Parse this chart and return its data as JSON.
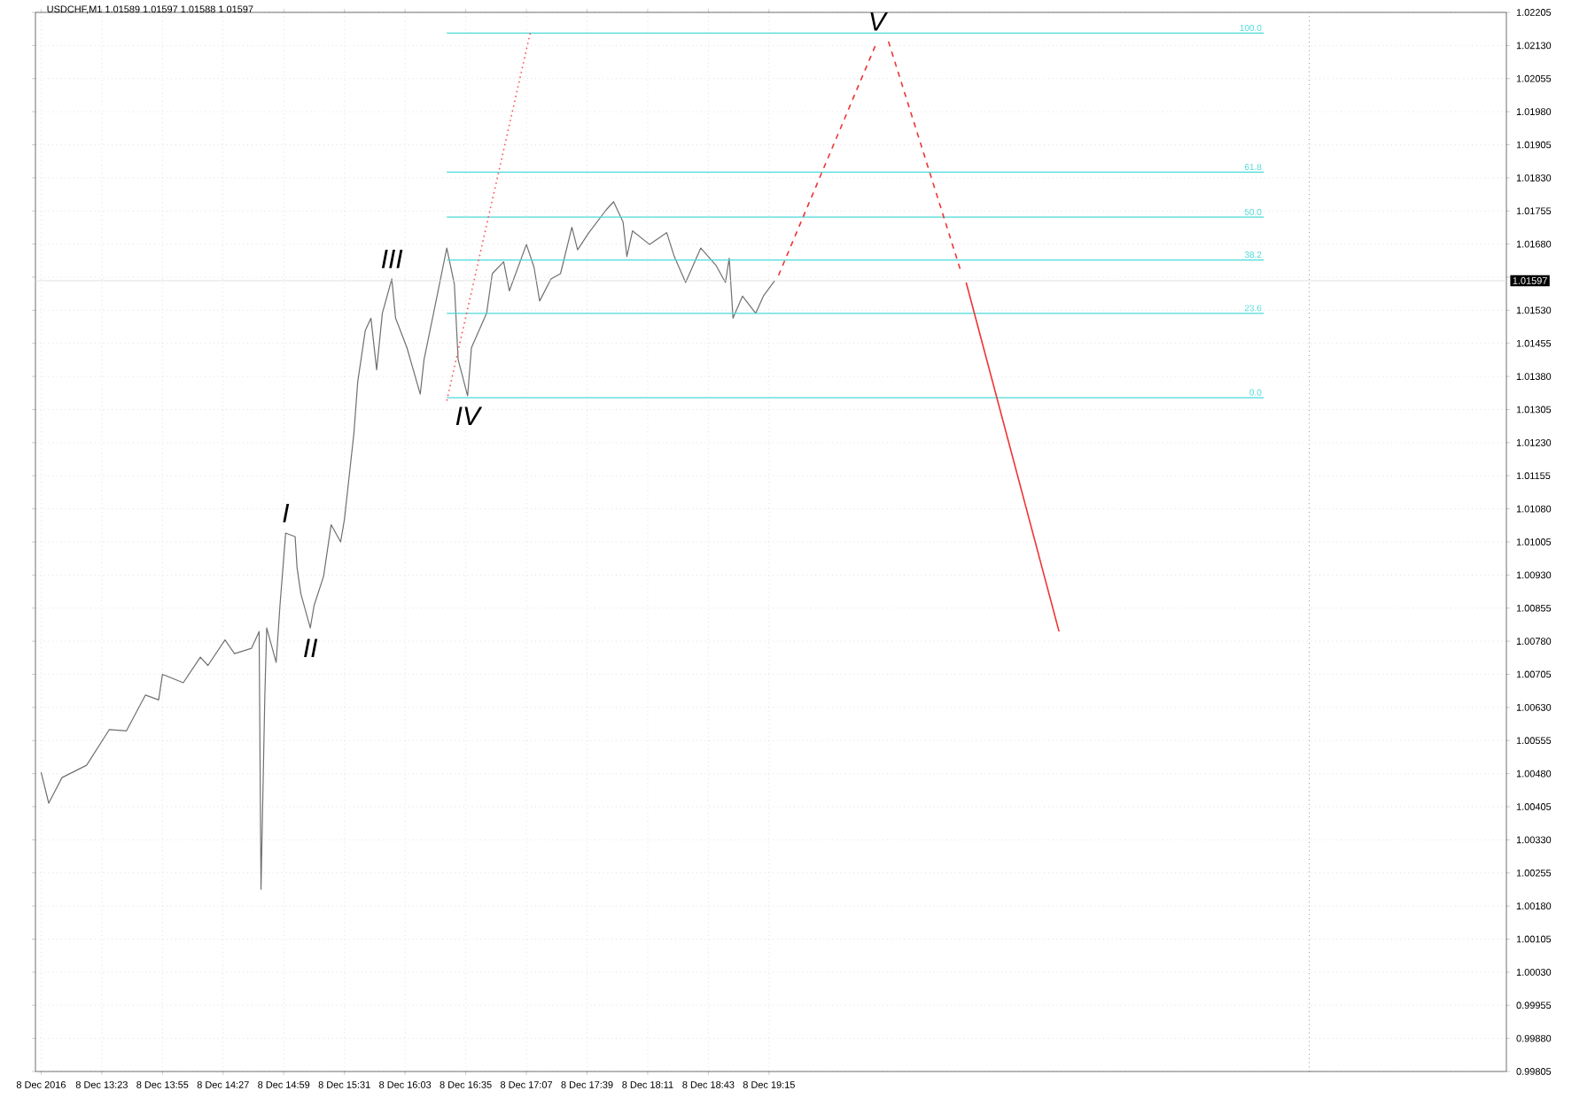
{
  "chart_data": {
    "type": "line",
    "title": "USDCHF,M1  1.01589 1.01597 1.01588 1.01597",
    "xlim": [
      "2016-12-08T12:48",
      "2016-12-09T01:44"
    ],
    "ylim": [
      0.99805,
      1.02205
    ],
    "xticks": [
      {
        "value": "2016-12-08T12:51",
        "label": "8 Dec 2016"
      },
      {
        "value": "2016-12-08T13:23",
        "label": "8 Dec 13:23"
      },
      {
        "value": "2016-12-08T13:55",
        "label": "8 Dec 13:55"
      },
      {
        "value": "2016-12-08T14:27",
        "label": "8 Dec 14:27"
      },
      {
        "value": "2016-12-08T14:59",
        "label": "8 Dec 14:59"
      },
      {
        "value": "2016-12-08T15:31",
        "label": "8 Dec 15:31"
      },
      {
        "value": "2016-12-08T16:03",
        "label": "8 Dec 16:03"
      },
      {
        "value": "2016-12-08T16:35",
        "label": "8 Dec 16:35"
      },
      {
        "value": "2016-12-08T17:07",
        "label": "8 Dec 17:07"
      },
      {
        "value": "2016-12-08T17:39",
        "label": "8 Dec 17:39"
      },
      {
        "value": "2016-12-08T18:11",
        "label": "8 Dec 18:11"
      },
      {
        "value": "2016-12-08T18:43",
        "label": "8 Dec 18:43"
      },
      {
        "value": "2016-12-08T19:15",
        "label": "8 Dec 19:15"
      }
    ],
    "yticks": [
      {
        "value": 0.99805,
        "label": "0.99805"
      },
      {
        "value": 0.9988,
        "label": "0.99880"
      },
      {
        "value": 0.99955,
        "label": "0.99955"
      },
      {
        "value": 1.0003,
        "label": "1.00030"
      },
      {
        "value": 1.00105,
        "label": "1.00105"
      },
      {
        "value": 1.0018,
        "label": "1.00180"
      },
      {
        "value": 1.00255,
        "label": "1.00255"
      },
      {
        "value": 1.0033,
        "label": "1.00330"
      },
      {
        "value": 1.00405,
        "label": "1.00405"
      },
      {
        "value": 1.0048,
        "label": "1.00480"
      },
      {
        "value": 1.00555,
        "label": "1.00555"
      },
      {
        "value": 1.0063,
        "label": "1.00630"
      },
      {
        "value": 1.00705,
        "label": "1.00705"
      },
      {
        "value": 1.0078,
        "label": "1.00780"
      },
      {
        "value": 1.00855,
        "label": "1.00855"
      },
      {
        "value": 1.0093,
        "label": "1.00930"
      },
      {
        "value": 1.01005,
        "label": "1.01005"
      },
      {
        "value": 1.0108,
        "label": "1.01080"
      },
      {
        "value": 1.01155,
        "label": "1.01155"
      },
      {
        "value": 1.0123,
        "label": "1.01230"
      },
      {
        "value": 1.01305,
        "label": "1.01305"
      },
      {
        "value": 1.0138,
        "label": "1.01380"
      },
      {
        "value": 1.01455,
        "label": "1.01455"
      },
      {
        "value": 1.0153,
        "label": "1.01530"
      },
      {
        "value": 1.01605,
        "label": null
      },
      {
        "value": 1.0168,
        "label": "1.01680"
      },
      {
        "value": 1.01755,
        "label": "1.01755"
      },
      {
        "value": 1.0183,
        "label": "1.01830"
      },
      {
        "value": 1.01905,
        "label": "1.01905"
      },
      {
        "value": 1.0198,
        "label": "1.01980"
      },
      {
        "value": 1.02055,
        "label": "1.02055"
      },
      {
        "value": 1.0213,
        "label": "1.02130"
      },
      {
        "value": 1.02205,
        "label": "1.02205"
      }
    ],
    "grid": true,
    "marker": "none",
    "series": [
      {
        "color": "#707070",
        "x": [
          "2016-12-08T12:51",
          "2016-12-08T12:55",
          "2016-12-08T13:02",
          "2016-12-08T13:15",
          "2016-12-08T13:27",
          "2016-12-08T13:36",
          "2016-12-08T13:46",
          "2016-12-08T13:53",
          "2016-12-08T13:55",
          "2016-12-08T14:06",
          "2016-12-08T14:15",
          "2016-12-08T14:19",
          "2016-12-08T14:28",
          "2016-12-08T14:33",
          "2016-12-08T14:42",
          "2016-12-08T14:46",
          "2016-12-08T14:47",
          "2016-12-08T14:49",
          "2016-12-08T14:50",
          "2016-12-08T14:55",
          "2016-12-08T14:57",
          "2016-12-08T15:00",
          "2016-12-08T15:05",
          "2016-12-08T15:06",
          "2016-12-08T15:08",
          "2016-12-08T15:13",
          "2016-12-08T15:15",
          "2016-12-08T15:20",
          "2016-12-08T15:24",
          "2016-12-08T15:29",
          "2016-12-08T15:31",
          "2016-12-08T15:34",
          "2016-12-08T15:36",
          "2016-12-08T15:38",
          "2016-12-08T15:42",
          "2016-12-08T15:45",
          "2016-12-08T15:48",
          "2016-12-08T15:51",
          "2016-12-08T15:56",
          "2016-12-08T15:58",
          "2016-12-08T16:04",
          "2016-12-08T16:11",
          "2016-12-08T16:13",
          "2016-12-08T16:18",
          "2016-12-08T16:25",
          "2016-12-08T16:29",
          "2016-12-08T16:31",
          "2016-12-08T16:36",
          "2016-12-08T16:38",
          "2016-12-08T16:46",
          "2016-12-08T16:49",
          "2016-12-08T16:55",
          "2016-12-08T16:58",
          "2016-12-08T17:07",
          "2016-12-08T17:11",
          "2016-12-08T17:14",
          "2016-12-08T17:20",
          "2016-12-08T17:25",
          "2016-12-08T17:31",
          "2016-12-08T17:34",
          "2016-12-08T17:40",
          "2016-12-08T17:49",
          "2016-12-08T17:53",
          "2016-12-08T17:58",
          "2016-12-08T18:00",
          "2016-12-08T18:03",
          "2016-12-08T18:12",
          "2016-12-08T18:21",
          "2016-12-08T18:25",
          "2016-12-08T18:31",
          "2016-12-08T18:39",
          "2016-12-08T18:47",
          "2016-12-08T18:52",
          "2016-12-08T18:54",
          "2016-12-08T18:56",
          "2016-12-08T19:01",
          "2016-12-08T19:08",
          "2016-12-08T19:12",
          "2016-12-08T19:18"
        ],
        "values": [
          1.00483,
          1.00413,
          1.00471,
          1.00499,
          1.0058,
          1.00577,
          1.00658,
          1.00647,
          1.00705,
          1.00686,
          1.00744,
          1.00725,
          1.00783,
          1.00752,
          1.00764,
          1.00802,
          1.00218,
          1.00654,
          1.0081,
          1.00732,
          1.00861,
          1.01025,
          1.01017,
          1.00947,
          1.00888,
          1.0081,
          1.00861,
          1.00927,
          1.01044,
          1.01005,
          1.01056,
          1.01173,
          1.01251,
          1.01367,
          1.01484,
          1.01512,
          1.01395,
          1.01523,
          1.01601,
          1.01512,
          1.01445,
          1.0134,
          1.01418,
          1.01523,
          1.01671,
          1.01589,
          1.01418,
          1.01336,
          1.01445,
          1.01523,
          1.01613,
          1.0164,
          1.01574,
          1.01679,
          1.01628,
          1.01551,
          1.01601,
          1.01613,
          1.01718,
          1.01667,
          1.01706,
          1.01757,
          1.01776,
          1.0173,
          1.01652,
          1.0171,
          1.01679,
          1.01706,
          1.01652,
          1.01593,
          1.01671,
          1.01632,
          1.01593,
          1.01648,
          1.01512,
          1.01562,
          1.01523,
          1.01562,
          1.01597
        ]
      },
      {
        "name": "100.0",
        "color": "#4dd9d9",
        "x": [
          "2016-12-08T16:25",
          "2016-12-08T23:36"
        ],
        "values": [
          1.02158,
          1.02158
        ]
      },
      {
        "name": "61.8",
        "color": "#4dd9d9",
        "x": [
          "2016-12-08T16:25",
          "2016-12-08T23:36"
        ],
        "values": [
          1.01843,
          1.01843
        ]
      },
      {
        "name": "50.0",
        "color": "#4dd9d9",
        "x": [
          "2016-12-08T16:25",
          "2016-12-08T23:36"
        ],
        "values": [
          1.01741,
          1.01741
        ]
      },
      {
        "name": "38.2",
        "color": "#4dd9d9",
        "x": [
          "2016-12-08T16:25",
          "2016-12-08T23:36"
        ],
        "values": [
          1.01644,
          1.01644
        ]
      },
      {
        "name": "23.6",
        "color": "#4dd9d9",
        "x": [
          "2016-12-08T16:25",
          "2016-12-08T23:36"
        ],
        "values": [
          1.01523,
          1.01523
        ]
      },
      {
        "name": "0.0",
        "color": "#4dd9d9",
        "x": [
          "2016-12-08T16:25",
          "2016-12-08T23:36"
        ],
        "values": [
          1.01332,
          1.01332
        ]
      },
      {
        "color": "#ff5050",
        "line_style": "dotted",
        "x": [
          "2016-12-08T16:25",
          "2016-12-08T17:09"
        ],
        "values": [
          1.01325,
          1.02158
        ]
      },
      {
        "color": "#ee3333",
        "line_style": "dashed",
        "x": [
          "2016-12-08T19:20",
          "2016-12-08T20:12"
        ],
        "values": [
          1.01609,
          1.02139
        ]
      },
      {
        "color": "#ee3333",
        "line_style": "dashed",
        "x": [
          "2016-12-08T20:18",
          "2016-12-08T20:56"
        ],
        "values": [
          1.02139,
          1.01621
        ]
      },
      {
        "color": "#ee3333",
        "line_style": "solid",
        "x": [
          "2016-12-08T20:59",
          "2016-12-08T21:48"
        ],
        "values": [
          1.01593,
          1.00802
        ]
      }
    ],
    "ref_lines": [
      {
        "axis": "y",
        "value": 1.01597,
        "label": "1.01597",
        "color": "#d8d8d8",
        "line_style": "solid"
      },
      {
        "axis": "x",
        "value": "2016-12-09T00:00",
        "color": "#505050",
        "line_style": "dotted"
      }
    ],
    "annotations": [
      {
        "text": "I",
        "x": "2016-12-08T15:00",
        "y": 1.01025
      },
      {
        "text": "II",
        "x": "2016-12-08T15:13",
        "y": 1.0081
      },
      {
        "text": "III",
        "x": "2016-12-08T15:56",
        "y": 1.01601
      },
      {
        "text": "IV",
        "x": "2016-12-08T16:36",
        "y": 1.01336
      },
      {
        "text": "V",
        "x": "2016-12-08T20:12",
        "y": 1.02139
      }
    ]
  }
}
